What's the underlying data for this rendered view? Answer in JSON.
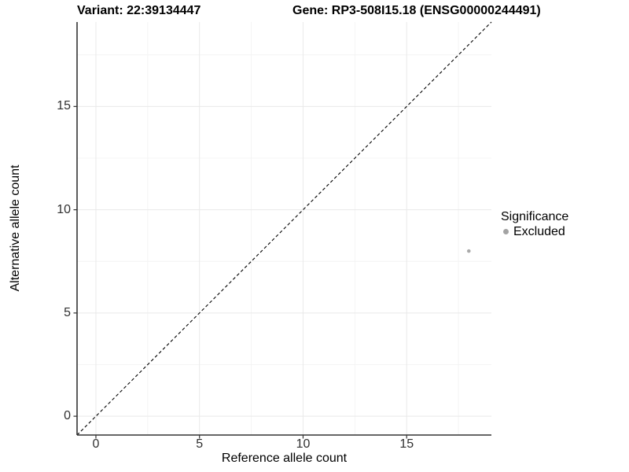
{
  "chart_data": {
    "type": "scatter",
    "title_left": "Variant: 22:39134447",
    "title_right": "Gene: RP3-508I15.18 (ENSG00000244491)",
    "xlabel": "Reference allele count",
    "ylabel": "Alternative allele count",
    "xlim": [
      -0.91,
      19.09
    ],
    "ylim": [
      -0.91,
      19.09
    ],
    "x_ticks": [
      0,
      5,
      10,
      15
    ],
    "y_ticks": [
      0,
      5,
      10,
      15
    ],
    "x_minor_ticks": [
      2.5,
      7.5,
      12.5,
      17.5
    ],
    "y_minor_ticks": [
      2.5,
      7.5,
      12.5,
      17.5
    ],
    "grid": "major+minor",
    "identity_line": {
      "show": true,
      "style": "dashed",
      "color": "#000000"
    },
    "series": [
      {
        "name": "Excluded",
        "color": "#aaaaaa",
        "points": [
          {
            "x": 18,
            "y": 8
          }
        ]
      }
    ],
    "legend": {
      "title": "Significance",
      "position": "right",
      "items": [
        {
          "label": "Excluded",
          "color": "#a3a3a3"
        }
      ]
    }
  },
  "colors": {
    "background": "#ffffff",
    "axis_line": "#333333",
    "tick_label": "#303030",
    "grid_major": "#e9e9e9",
    "grid_minor": "#f4f4f4",
    "title": "#000000"
  }
}
